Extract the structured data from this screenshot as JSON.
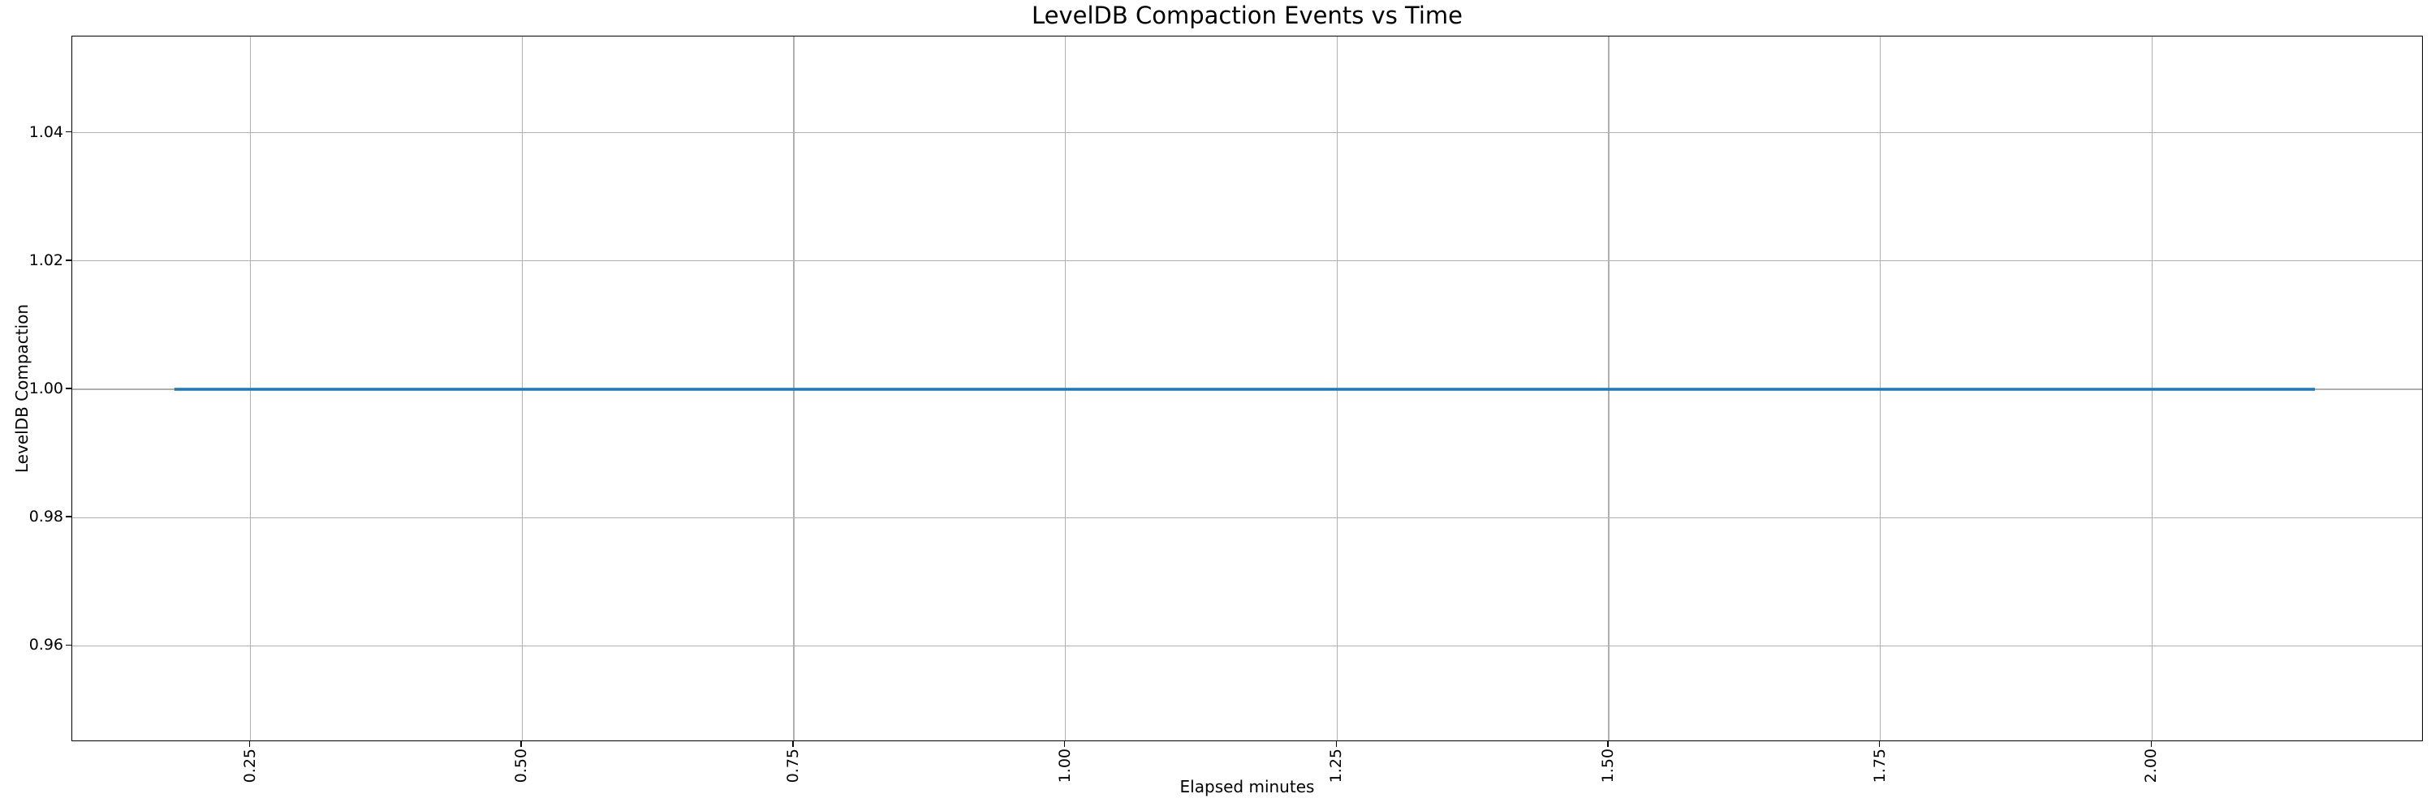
{
  "chart_data": {
    "type": "line",
    "title": "LevelDB Compaction Events vs Time",
    "xlabel": "Elapsed minutes",
    "ylabel": "LevelDB Compaction",
    "xlim": [
      0.086,
      2.25
    ],
    "ylim": [
      0.945,
      1.055
    ],
    "x_tick_values": [
      0.25,
      0.5,
      0.75,
      1.0,
      1.25,
      1.5,
      1.75,
      2.0
    ],
    "x_tick_labels": [
      "0.25",
      "0.50",
      "0.75",
      "1.00",
      "1.25",
      "1.50",
      "1.75",
      "2.00"
    ],
    "x_tick_rotation_deg": 90,
    "y_tick_values": [
      0.96,
      0.98,
      1.0,
      1.02,
      1.04
    ],
    "y_tick_labels": [
      "0.96",
      "0.98",
      "1.00",
      "1.02",
      "1.04"
    ],
    "grid": true,
    "legend_position": "none",
    "series": [
      {
        "name": "LevelDB Compaction",
        "color": "#1f77b4",
        "x": [
          0.18,
          2.15
        ],
        "y": [
          1.0,
          1.0
        ]
      }
    ]
  },
  "colors": {
    "line": "#1f77b4",
    "grid": "#b0b0b0",
    "axis": "#000000",
    "text": "#000000",
    "background": "#ffffff"
  }
}
